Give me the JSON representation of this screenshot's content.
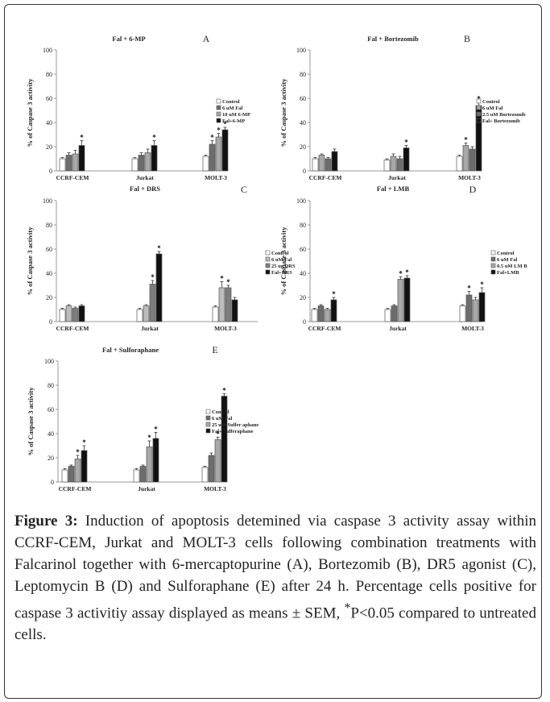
{
  "caption": {
    "figure_label": "Figure 3:",
    "text_before_sup": " Induction of apoptosis detemined via caspase 3 activity assay within CCRF-CEM, Jurkat and MOLT-3 cells following combination treatments with Falcarinol together with 6-mercaptopurine (A), Bortezomib (B), DR5 agonist (C), Leptomycin B (D) and Sulforaphane (E) after 24 h. Percentage cells positive for caspase 3 activitiy assay displayed as means ± SEM, ",
    "sup": "*",
    "text_after_sup": "P<0.05 compared to untreated cells."
  },
  "chart_data": [
    {
      "type": "bar",
      "panel": "A",
      "title": "Fal + 6-MP",
      "ylabel": "% of Caspase 3 activity",
      "ylim": [
        0,
        100
      ],
      "yticks": [
        0,
        20,
        40,
        60,
        80,
        100
      ],
      "categories": [
        "CCRF-CEM",
        "Jurkat",
        "MOLT-3"
      ],
      "legend_position": "right",
      "series": [
        {
          "name": "Control",
          "values": [
            10,
            10,
            12
          ],
          "errors": [
            1,
            1,
            1
          ],
          "color": "#ffffff"
        },
        {
          "name": "6 uM Fal",
          "values": [
            13,
            13,
            22
          ],
          "errors": [
            2,
            2,
            3
          ],
          "color": "#6d6d6d"
        },
        {
          "name": "10 uM 6-MP",
          "values": [
            14,
            15,
            28
          ],
          "errors": [
            3,
            3,
            3
          ],
          "color": "#a8a8a8"
        },
        {
          "name": "Fal+6-MP",
          "values": [
            21,
            21,
            34
          ],
          "errors": [
            4,
            4,
            2
          ],
          "color": "#111111"
        }
      ],
      "significant": [
        [
          false,
          false,
          false,
          true
        ],
        [
          false,
          false,
          false,
          true
        ],
        [
          false,
          true,
          true,
          true
        ]
      ]
    },
    {
      "type": "bar",
      "panel": "B",
      "title": "Fal + Bortezomib",
      "ylabel": "% of Caspase 3 activity",
      "ylim": [
        0,
        100
      ],
      "yticks": [
        0,
        20,
        40,
        60,
        80,
        100
      ],
      "categories": [
        "CCRF-CEM",
        "Jurkat",
        "MOLT-3"
      ],
      "legend_position": "right",
      "series": [
        {
          "name": "Control",
          "values": [
            10,
            9,
            12
          ],
          "errors": [
            1,
            1,
            1
          ],
          "color": "#ffffff"
        },
        {
          "name": "6 uM Fal",
          "values": [
            13,
            12,
            21
          ],
          "errors": [
            1,
            2,
            2
          ],
          "color": "#a8a8a8"
        },
        {
          "name": "2.5 uM Bortezomib",
          "values": [
            10,
            10,
            18
          ],
          "errors": [
            1,
            2,
            2
          ],
          "color": "#6d6d6d"
        },
        {
          "name": "Fal+ Bortezomib",
          "values": [
            16,
            19,
            54
          ],
          "errors": [
            2,
            2,
            3
          ],
          "color": "#111111"
        }
      ],
      "significant": [
        [
          false,
          false,
          false,
          false
        ],
        [
          false,
          false,
          false,
          true
        ],
        [
          false,
          true,
          false,
          true
        ]
      ]
    },
    {
      "type": "bar",
      "panel": "C",
      "title": "Fal + DRS",
      "ylabel": "% of Caspase 3 activity",
      "ylim": [
        0,
        100
      ],
      "yticks": [
        0,
        20,
        40,
        60,
        80,
        100
      ],
      "categories": [
        "CCRF-CEM",
        "Jurkat",
        "MOLT-3"
      ],
      "legend_position": "right",
      "series": [
        {
          "name": "Control",
          "values": [
            10,
            10,
            12
          ],
          "errors": [
            1,
            1,
            1
          ],
          "color": "#ffffff"
        },
        {
          "name": "6 uM Fal",
          "values": [
            13,
            13,
            28
          ],
          "errors": [
            1,
            1,
            5
          ],
          "color": "#bcbcbc"
        },
        {
          "name": "25 ug DRS",
          "values": [
            11,
            31,
            28
          ],
          "errors": [
            1,
            3,
            2
          ],
          "color": "#7d7d7d"
        },
        {
          "name": "Fal+DRS",
          "values": [
            13,
            56,
            18
          ],
          "errors": [
            1,
            2,
            2
          ],
          "color": "#111111"
        }
      ],
      "significant": [
        [
          false,
          false,
          false,
          false
        ],
        [
          false,
          false,
          true,
          true
        ],
        [
          false,
          true,
          true,
          false
        ]
      ]
    },
    {
      "type": "bar",
      "panel": "D",
      "title": "Fal + LMB",
      "ylabel": "% of Caspase 3 activity",
      "ylim": [
        0,
        100
      ],
      "yticks": [
        0,
        20,
        40,
        60,
        80,
        100
      ],
      "categories": [
        "CCRF-CEM",
        "Jurkat",
        "MOLT-3"
      ],
      "legend_position": "right",
      "series": [
        {
          "name": "Control",
          "values": [
            10,
            10,
            13
          ],
          "errors": [
            1,
            1,
            1
          ],
          "color": "#ffffff"
        },
        {
          "name": "6 uM Fal",
          "values": [
            13,
            13,
            22
          ],
          "errors": [
            1,
            1,
            3
          ],
          "color": "#6d6d6d"
        },
        {
          "name": "0.5 uM LM B",
          "values": [
            10,
            35,
            18
          ],
          "errors": [
            1,
            2,
            2
          ],
          "color": "#a8a8a8"
        },
        {
          "name": "Fal+LMB",
          "values": [
            18,
            36,
            24
          ],
          "errors": [
            2,
            2,
            4
          ],
          "color": "#111111"
        }
      ],
      "significant": [
        [
          false,
          false,
          false,
          true
        ],
        [
          false,
          false,
          true,
          true
        ],
        [
          false,
          true,
          false,
          true
        ]
      ]
    },
    {
      "type": "bar",
      "panel": "E",
      "title": "Fal + Sulforaphane",
      "ylabel": "% of Caspase 3 activity",
      "ylim": [
        0,
        100
      ],
      "yticks": [
        0,
        20,
        40,
        60,
        80,
        100
      ],
      "categories": [
        "CCRF-CEM",
        "Jurkat",
        "MOLT-3"
      ],
      "legend_position": "right",
      "series": [
        {
          "name": "Control",
          "values": [
            10,
            10,
            12
          ],
          "errors": [
            1,
            1,
            1
          ],
          "color": "#ffffff"
        },
        {
          "name": "6 uM Fal",
          "values": [
            13,
            13,
            22
          ],
          "errors": [
            1,
            1,
            2
          ],
          "color": "#6d6d6d"
        },
        {
          "name": "25 uM Sulfer aphane",
          "values": [
            19,
            29,
            35
          ],
          "errors": [
            3,
            5,
            2
          ],
          "color": "#a8a8a8"
        },
        {
          "name": "Fal+ Sulferaphane",
          "values": [
            26,
            36,
            71
          ],
          "errors": [
            4,
            5,
            2
          ],
          "color": "#111111"
        }
      ],
      "significant": [
        [
          false,
          false,
          true,
          true
        ],
        [
          false,
          false,
          true,
          true
        ],
        [
          false,
          false,
          true,
          true
        ]
      ]
    }
  ]
}
